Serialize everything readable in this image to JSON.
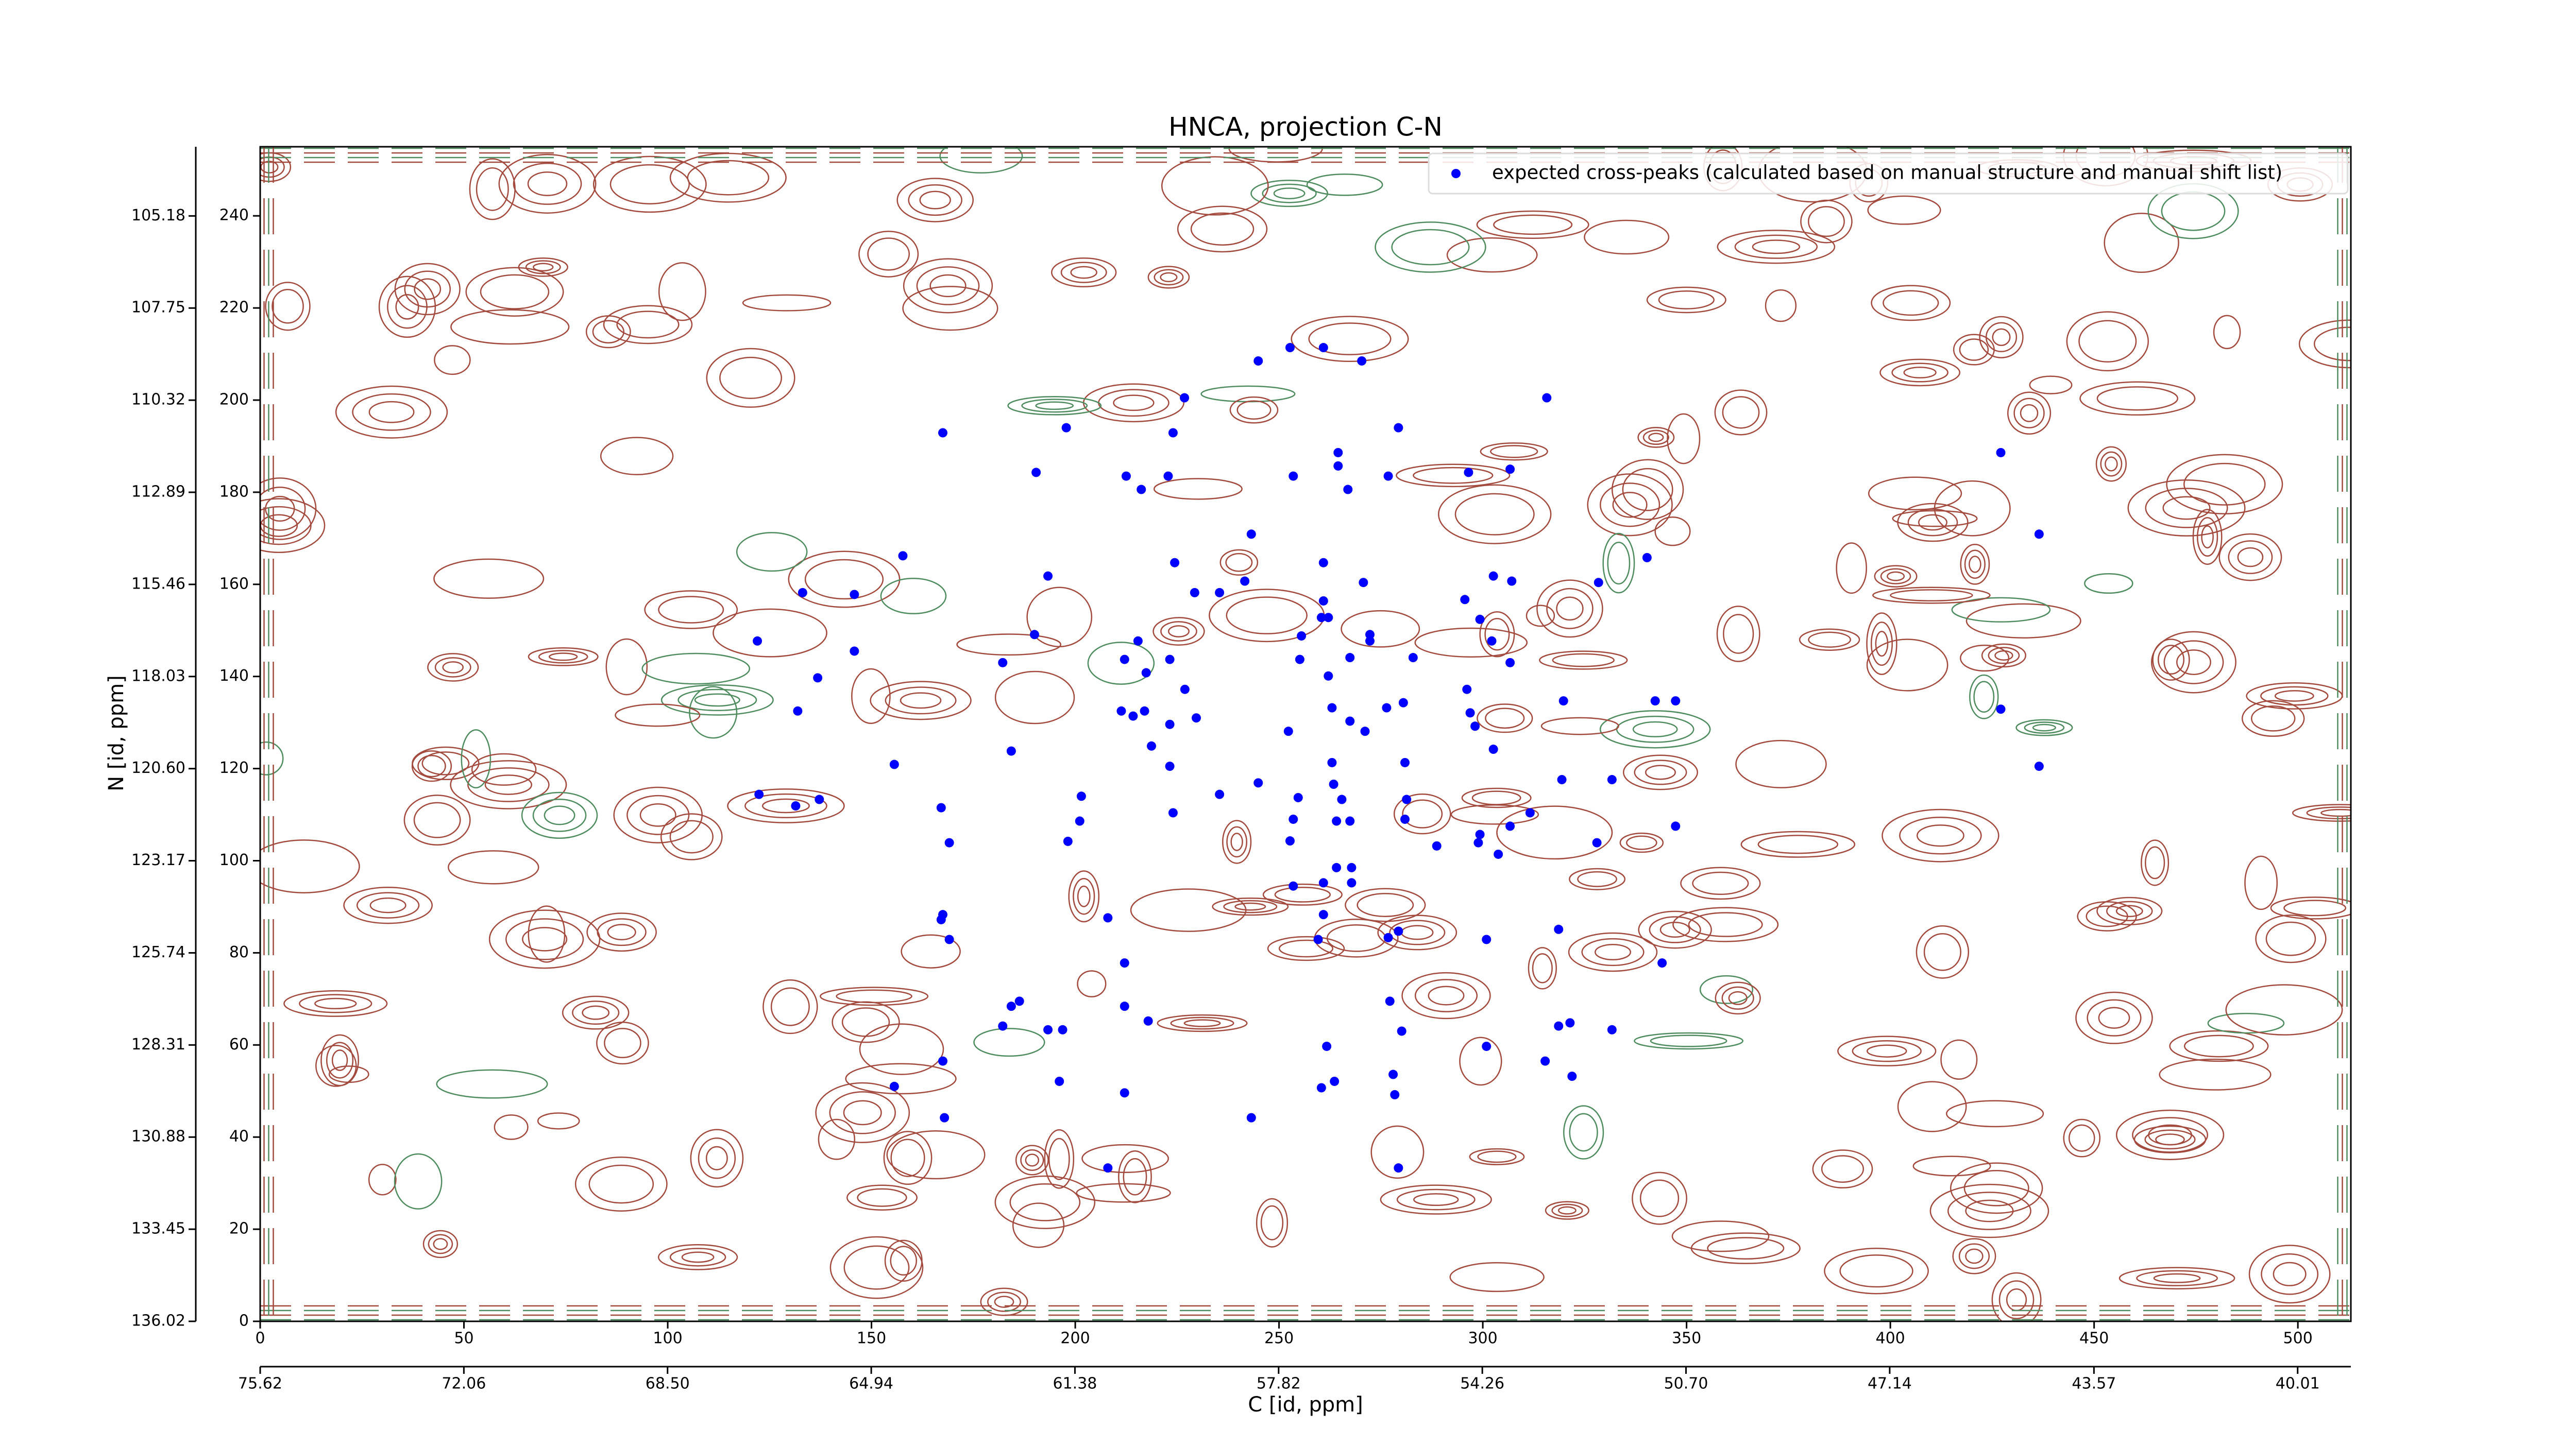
{
  "chart_data": {
    "type": "scatter",
    "title": "HNCA, projection C-N",
    "xlabel": "C [id, ppm]",
    "ylabel": "N [id, ppm]",
    "xlim": [
      0,
      513
    ],
    "xticks": [
      0,
      50,
      100,
      150,
      200,
      250,
      300,
      350,
      400,
      450,
      500
    ],
    "x2lim": [
      75.62,
      39.08
    ],
    "x2ticks": [
      75.62,
      72.06,
      {
        "value": 68.5,
        "label": "68.50"
      },
      64.94,
      61.38,
      57.82,
      54.26,
      {
        "value": 50.7,
        "label": "50.70"
      },
      47.14,
      43.57,
      40.01
    ],
    "ylim": [
      0,
      255
    ],
    "yticks": [
      0,
      20,
      40,
      60,
      80,
      100,
      120,
      140,
      160,
      180,
      200,
      220,
      240
    ],
    "y2lim": [
      136.02,
      103.25
    ],
    "y2ticks": [
      136.02,
      133.45,
      130.88,
      128.31,
      125.74,
      123.17,
      {
        "value": 120.6,
        "label": "120.60"
      },
      118.03,
      115.46,
      112.89,
      110.32,
      107.75,
      105.18
    ],
    "legend": "upper right",
    "series": [
      {
        "name": "expected cross-peaks (calculated based on manual structure and manual shift list)",
        "color": "#0000ff",
        "x": [
          244.9,
          252.7,
          260.9,
          270.3,
          226.8,
          315.7,
          167.5,
          197.8,
          224.0,
          279.3,
          427.1,
          264.5,
          264.5,
          190.4,
          212.5,
          222.8,
          253.5,
          276.8,
          296.5,
          306.7,
          216.2,
          266.9,
          243.2,
          436.5,
          157.7,
          224.4,
          260.9,
          241.6,
          193.3,
          270.7,
          302.6,
          307.1,
          328.4,
          340.3,
          133.1,
          145.8,
          229.3,
          235.4,
          260.9,
          295.6,
          260.4,
          262.1,
          299.3,
          122.0,
          190.0,
          215.4,
          255.5,
          272.3,
          272.3,
          302.2,
          145.8,
          182.2,
          212.1,
          223.2,
          255.1,
          267.4,
          282.9,
          306.7,
          136.8,
          217.4,
          262.1,
          226.9,
          296.1,
          131.9,
          211.3,
          214.2,
          217.0,
          229.7,
          263.0,
          276.4,
          280.5,
          296.9,
          319.8,
          342.3,
          347.3,
          427.1,
          223.2,
          267.4,
          252.3,
          271.1,
          298.1,
          218.7,
          302.6,
          184.3,
          155.6,
          223.2,
          263.0,
          280.9,
          436.5,
          244.9,
          319.4,
          331.7,
          263.4,
          122.4,
          137.2,
          131.4,
          201.5,
          235.4,
          254.7,
          265.4,
          281.3,
          167.1,
          224.0,
          311.6,
          253.5,
          264.1,
          267.4,
          280.9,
          201.1,
          347.3,
          306.7,
          198.2,
          299.3,
          298.9,
          169.1,
          252.7,
          288.7,
          303.8,
          328.0,
          264.1,
          267.8,
          260.9,
          267.8,
          253.5,
          208.0,
          260.9,
          167.5,
          167.1,
          279.3,
          276.8,
          259.6,
          300.9,
          318.6,
          169.1,
          212.1,
          344.0,
          186.3,
          184.3,
          212.1,
          277.2,
          217.9,
          182.2,
          193.3,
          196.9,
          280.1,
          321.4,
          318.6,
          331.7,
          261.7,
          300.9,
          167.5,
          315.3,
          278.0,
          321.9,
          196.1,
          263.6,
          260.4,
          155.6,
          212.1,
          278.4,
          167.9,
          243.2,
          208.0,
          279.3
        ],
        "y": [
          208.5,
          211.4,
          211.4,
          208.5,
          200.5,
          200.5,
          192.9,
          194.0,
          192.9,
          194.0,
          188.6,
          188.6,
          185.7,
          184.3,
          183.5,
          183.5,
          183.5,
          183.5,
          184.3,
          185.0,
          180.6,
          180.6,
          170.9,
          170.9,
          166.2,
          164.7,
          164.7,
          160.7,
          161.8,
          160.4,
          161.8,
          160.7,
          160.4,
          165.8,
          158.2,
          157.8,
          158.2,
          158.2,
          156.4,
          156.7,
          152.8,
          152.8,
          152.4,
          147.7,
          149.1,
          147.7,
          148.8,
          149.1,
          147.7,
          147.7,
          145.5,
          143.0,
          143.7,
          143.7,
          143.7,
          144.1,
          144.1,
          143.0,
          139.7,
          140.8,
          140.1,
          137.2,
          137.2,
          132.5,
          132.5,
          131.4,
          132.5,
          131.0,
          133.2,
          133.2,
          134.3,
          132.1,
          134.7,
          134.7,
          134.7,
          132.9,
          129.6,
          130.3,
          128.1,
          128.1,
          129.2,
          124.9,
          124.2,
          123.8,
          120.9,
          120.5,
          121.3,
          121.3,
          120.5,
          116.9,
          117.6,
          117.6,
          116.6,
          114.4,
          113.3,
          111.9,
          114.0,
          114.4,
          113.7,
          113.3,
          113.3,
          111.5,
          110.4,
          110.4,
          109.0,
          108.6,
          108.6,
          109.0,
          108.6,
          107.5,
          107.5,
          104.2,
          105.7,
          103.9,
          103.9,
          104.3,
          103.2,
          101.4,
          103.9,
          98.5,
          98.5,
          95.2,
          95.2,
          94.5,
          87.6,
          88.3,
          88.3,
          87.2,
          84.7,
          83.3,
          82.9,
          82.9,
          85.1,
          82.9,
          77.8,
          77.8,
          69.5,
          68.4,
          68.4,
          69.5,
          65.2,
          64.1,
          63.3,
          63.3,
          63.0,
          64.8,
          64.1,
          63.3,
          59.7,
          59.7,
          56.5,
          56.5,
          53.6,
          53.2,
          52.1,
          52.1,
          50.7,
          51.0,
          49.6,
          49.2,
          44.2,
          44.2,
          33.3,
          33.3
        ]
      }
    ]
  }
}
